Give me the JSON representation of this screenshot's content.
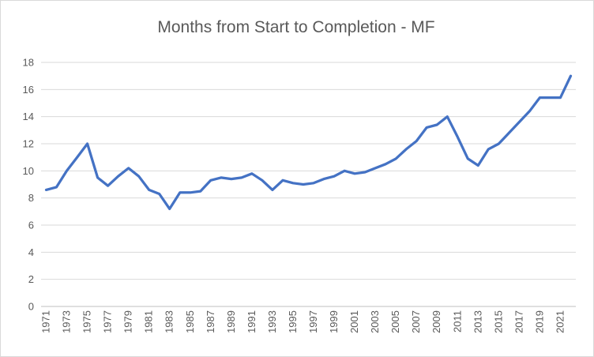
{
  "chart": {
    "title": "Months from Start to Completion - MF"
  },
  "chart_data": {
    "type": "line",
    "title": "Months from Start to Completion - MF",
    "xlabel": "",
    "ylabel": "",
    "ylim": [
      0,
      18
    ],
    "ytick_step": 2,
    "ytick_labels": [
      "0",
      "2",
      "4",
      "6",
      "8",
      "10",
      "12",
      "14",
      "16",
      "18"
    ],
    "x": [
      1971,
      1972,
      1973,
      1974,
      1975,
      1976,
      1977,
      1978,
      1979,
      1980,
      1981,
      1982,
      1983,
      1984,
      1985,
      1986,
      1987,
      1988,
      1989,
      1990,
      1991,
      1992,
      1993,
      1994,
      1995,
      1996,
      1997,
      1998,
      1999,
      2000,
      2001,
      2002,
      2003,
      2004,
      2005,
      2006,
      2007,
      2008,
      2009,
      2010,
      2011,
      2012,
      2013,
      2014,
      2015,
      2016,
      2017,
      2018,
      2019,
      2020,
      2021,
      2022
    ],
    "series": [
      {
        "name": "MF",
        "values": [
          8.6,
          8.8,
          10.0,
          11.0,
          12.0,
          9.5,
          8.9,
          9.6,
          10.2,
          9.6,
          8.6,
          8.3,
          7.2,
          8.4,
          8.4,
          8.5,
          9.3,
          9.5,
          9.4,
          9.5,
          9.8,
          9.3,
          8.6,
          9.3,
          9.1,
          9.0,
          9.1,
          9.4,
          9.6,
          10.0,
          9.8,
          9.9,
          10.2,
          10.5,
          10.9,
          11.6,
          12.2,
          13.2,
          13.4,
          14.0,
          12.5,
          10.9,
          10.4,
          11.6,
          12.0,
          12.8,
          13.6,
          14.4,
          15.4,
          15.4,
          15.4,
          17.0
        ]
      }
    ],
    "xtick_labels": [
      "1971",
      "1973",
      "1975",
      "1977",
      "1979",
      "1981",
      "1983",
      "1985",
      "1987",
      "1989",
      "1991",
      "1993",
      "1995",
      "1997",
      "1999",
      "2001",
      "2003",
      "2005",
      "2007",
      "2009",
      "2011",
      "2013",
      "2015",
      "2017",
      "2019",
      "2021"
    ],
    "grid": "horizontal",
    "legend_position": "none",
    "line_color": "#4472C4",
    "gridline_color": "#D9D9D9",
    "axis_line_color": "#BFBFBF",
    "axis_text_color": "#595959",
    "title_color": "#595959"
  }
}
